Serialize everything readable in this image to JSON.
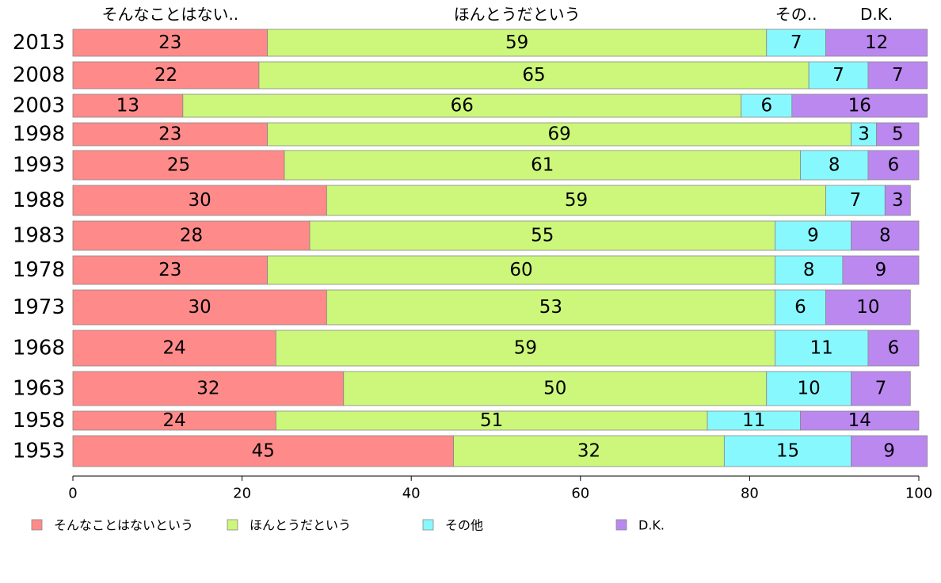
{
  "chart_data": {
    "type": "bar",
    "orientation": "horizontal",
    "stacked": true,
    "categories": [
      "2013",
      "2008",
      "2003",
      "1998",
      "1993",
      "1988",
      "1983",
      "1978",
      "1973",
      "1968",
      "1963",
      "1958",
      "1953"
    ],
    "series": [
      {
        "name": "そんなことはないという",
        "short_label": "そんなことはない..",
        "color": "#ff8a8a",
        "values": [
          23,
          22,
          13,
          23,
          25,
          30,
          28,
          23,
          30,
          24,
          32,
          24,
          45
        ]
      },
      {
        "name": "ほんとうだという",
        "short_label": "ほんとうだという",
        "color": "#ccf77a",
        "values": [
          59,
          65,
          66,
          69,
          61,
          59,
          55,
          60,
          53,
          59,
          50,
          51,
          32
        ]
      },
      {
        "name": "その他",
        "short_label": "その..",
        "color": "#88f8ff",
        "values": [
          7,
          7,
          6,
          3,
          8,
          7,
          9,
          8,
          6,
          11,
          10,
          11,
          15
        ]
      },
      {
        "name": "D.K.",
        "short_label": "D.K.",
        "color": "#bb88f0",
        "values": [
          12,
          7,
          16,
          5,
          6,
          3,
          8,
          9,
          10,
          6,
          7,
          14,
          9
        ]
      }
    ],
    "xlim": [
      0,
      100
    ],
    "xticks": [
      0,
      20,
      40,
      60,
      80,
      100
    ],
    "title": "",
    "xlabel": "",
    "ylabel": "",
    "grid": false,
    "legend_position": "bottom"
  }
}
